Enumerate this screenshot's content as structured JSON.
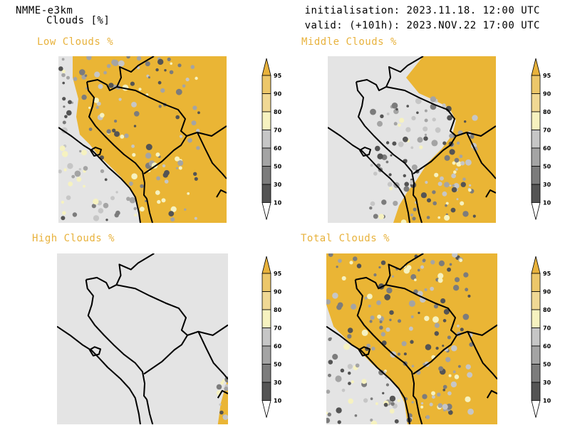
{
  "header": {
    "model": "NMME-e3km",
    "field": "Clouds [%]",
    "init": "initialisation: 2023.11.18. 12:00 UTC",
    "valid": "valid: (+101h): 2023.NOV.22 17:00 UTC"
  },
  "panels": [
    {
      "title": "Low Clouds %",
      "coverage": 0.6
    },
    {
      "title": "Middle Clouds %",
      "coverage": 0.48
    },
    {
      "title": "High Clouds %",
      "coverage": 0.02
    },
    {
      "title": "Total Clouds %",
      "coverage": 0.72
    }
  ],
  "colorbar": {
    "levels": [
      "95",
      "90",
      "80",
      "70",
      "60",
      "50",
      "30",
      "10"
    ],
    "colors": [
      "#e8b23c",
      "#ecc76a",
      "#f0d894",
      "#f6f2c0",
      "#c6c6c6",
      "#a4a4a4",
      "#7c7c7c",
      "#545454",
      "#ffffff"
    ]
  },
  "colors": {
    "cloud_orange": "#eab535",
    "clear_gray": "#e4e4e4",
    "border": "#000000"
  }
}
